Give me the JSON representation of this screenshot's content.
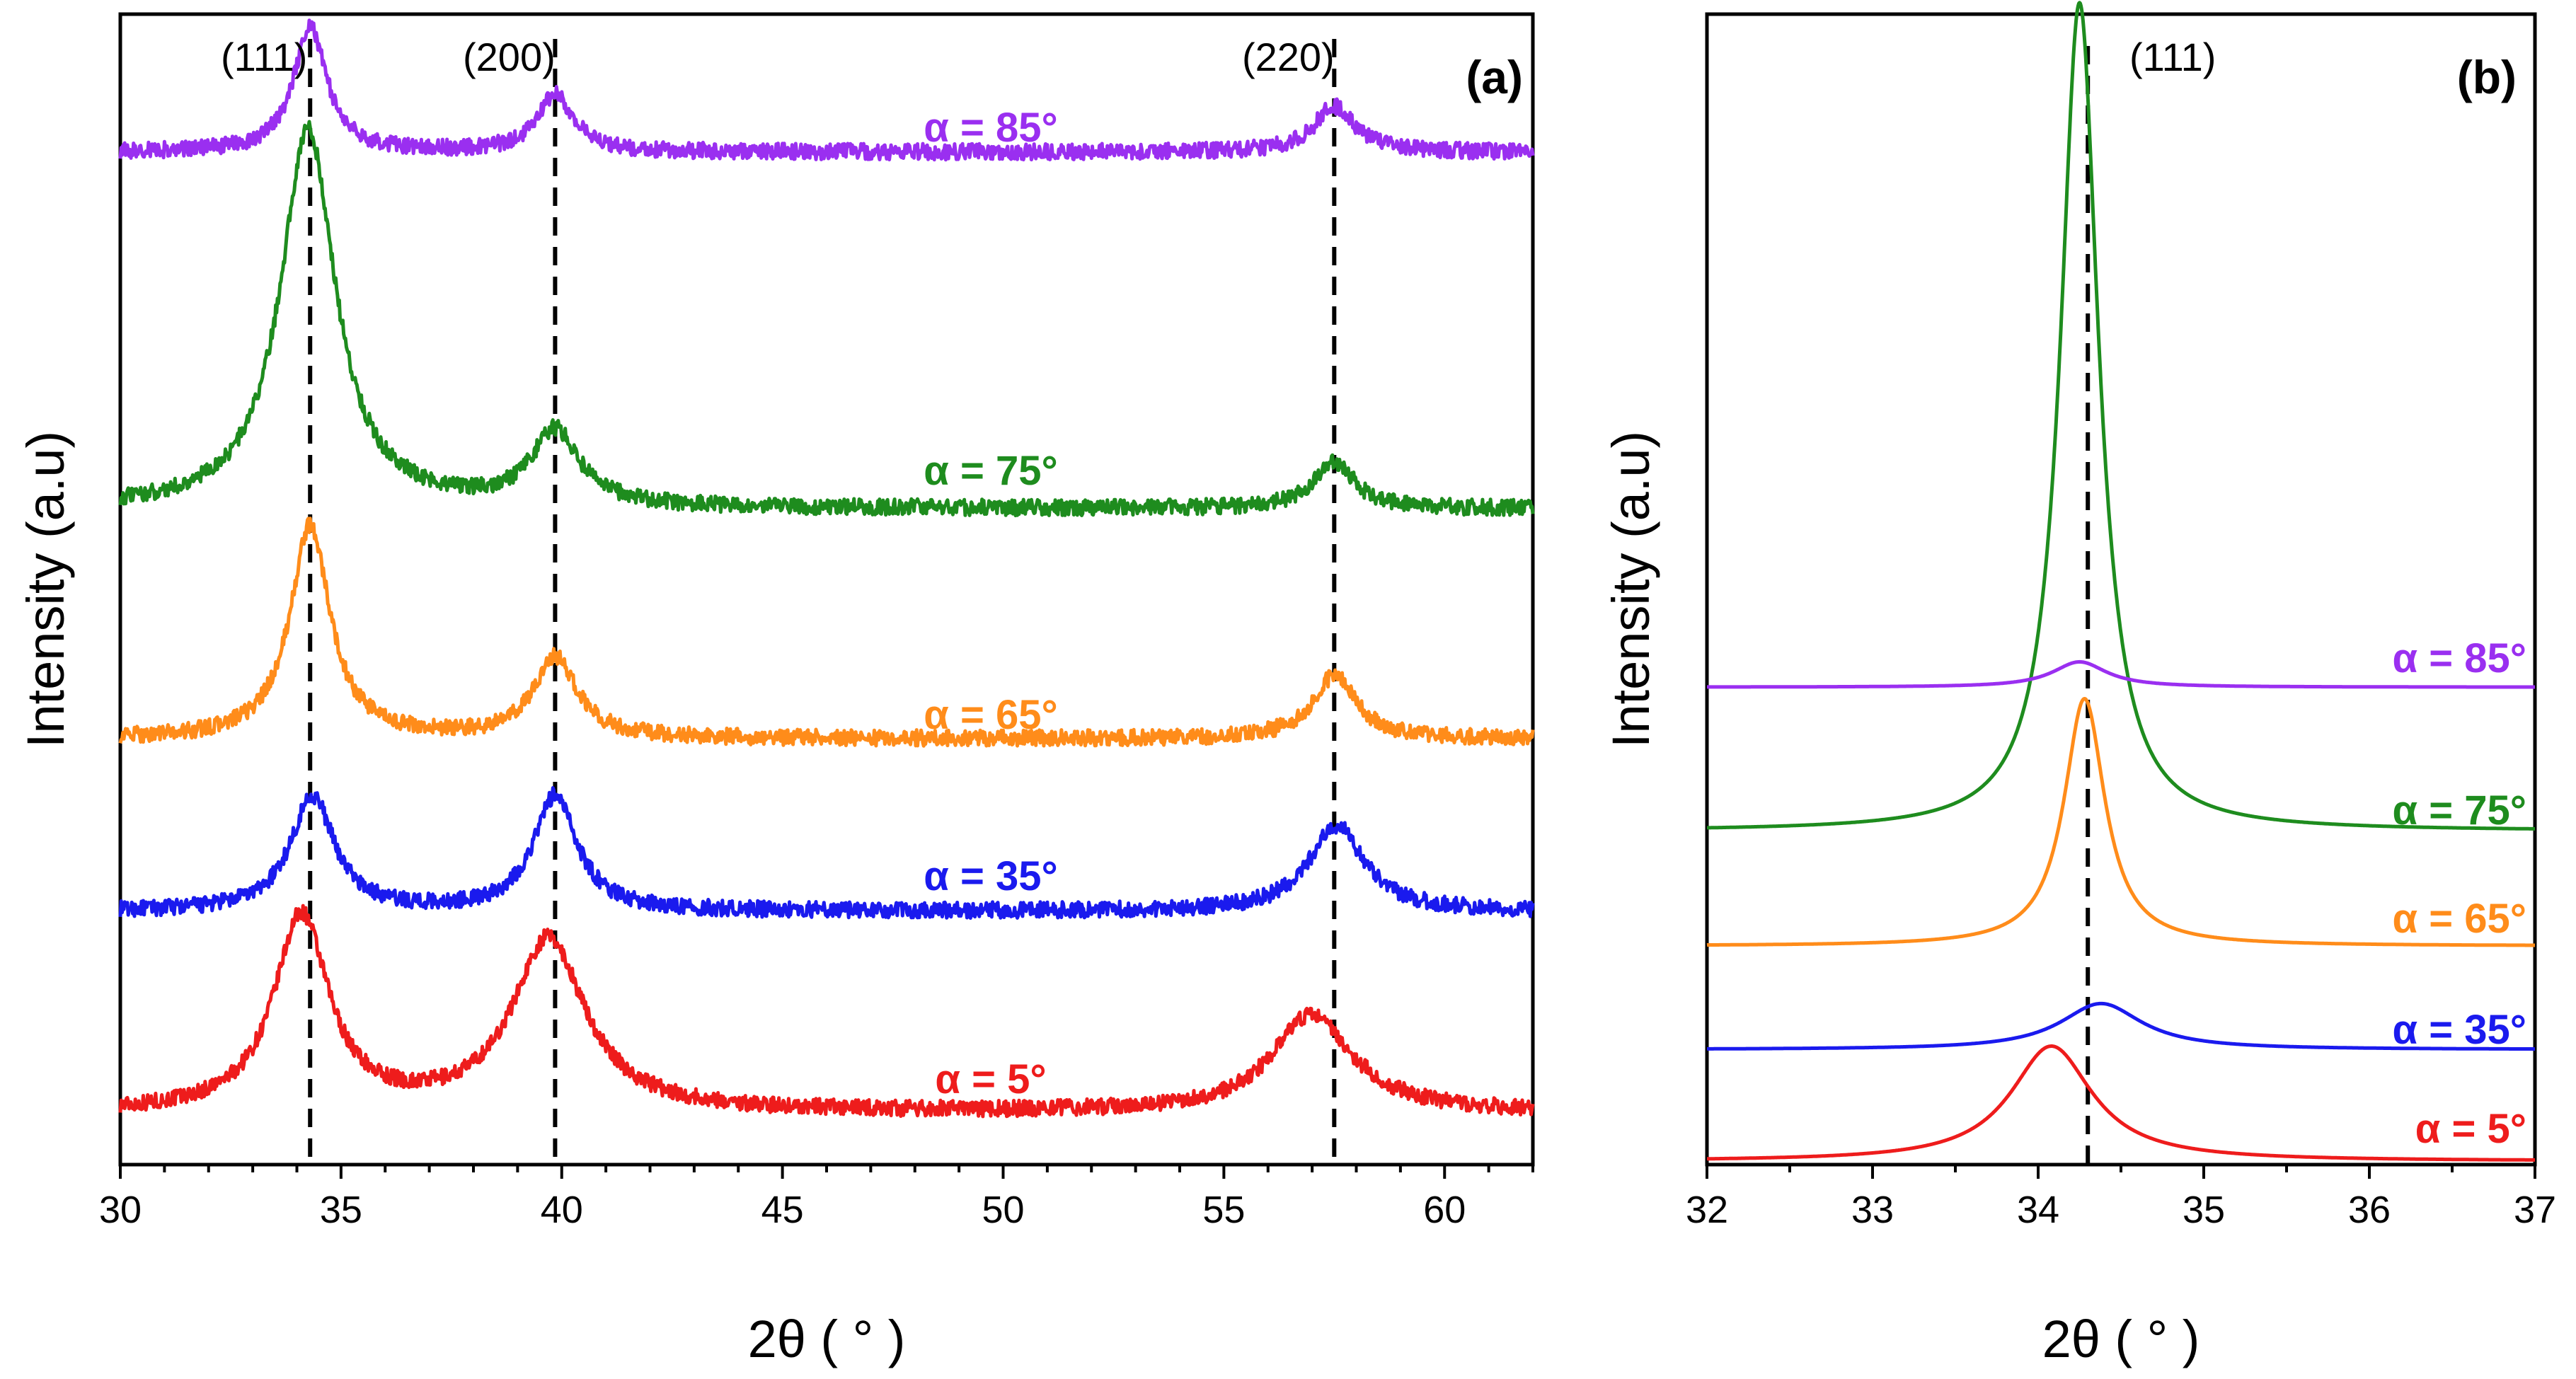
{
  "chart_data": [
    {
      "panel": "(a)",
      "type": "line",
      "xlabel": "2θ ( ° )",
      "ylabel": "Intensity (a.u)",
      "xlim": [
        30,
        62
      ],
      "xticks": [
        30,
        35,
        40,
        45,
        50,
        55,
        60
      ],
      "reference_lines": [
        34.3,
        39.85,
        57.5
      ],
      "peak_labels": [
        {
          "text": "(111)",
          "x": 34.3
        },
        {
          "text": "(200)",
          "x": 39.85
        },
        {
          "text": "(220)",
          "x": 57.5
        }
      ],
      "series": [
        {
          "name": "α = 5°",
          "color": "#ee1c1c",
          "baseline": 0.045,
          "peaks": [
            [
              34.1,
              0.17,
              0.75
            ],
            [
              39.7,
              0.15,
              1.0
            ],
            [
              57.0,
              0.085,
              1.1
            ]
          ],
          "noise": 0.007
        },
        {
          "name": "α = 35°",
          "color": "#1a1aee",
          "baseline": 0.22,
          "peaks": [
            [
              34.35,
              0.1,
              0.6
            ],
            [
              39.85,
              0.1,
              0.6
            ],
            [
              57.55,
              0.075,
              0.75
            ]
          ],
          "noise": 0.007
        },
        {
          "name": "α = 65°",
          "color": "#ff8c1a",
          "baseline": 0.37,
          "peaks": [
            [
              34.3,
              0.185,
              0.55
            ],
            [
              39.85,
              0.07,
              0.6
            ],
            [
              57.5,
              0.055,
              0.6
            ]
          ],
          "noise": 0.007
        },
        {
          "name": "α = 75°",
          "color": "#1e8c1e",
          "baseline": 0.57,
          "peaks": [
            [
              34.25,
              0.33,
              0.75
            ],
            [
              39.85,
              0.065,
              0.65
            ],
            [
              57.5,
              0.04,
              0.55
            ]
          ],
          "noise": 0.007
        },
        {
          "name": "α = 85°",
          "color": "#9a2ff0",
          "baseline": 0.88,
          "peaks": [
            [
              34.3,
              0.11,
              0.45
            ],
            [
              39.85,
              0.05,
              0.5
            ],
            [
              57.5,
              0.04,
              0.55
            ]
          ],
          "noise": 0.007
        }
      ]
    },
    {
      "panel": "(b)",
      "type": "line",
      "xlabel": "2θ ( ° )",
      "ylabel": "Intensity (a.u)",
      "xlim": [
        32,
        37
      ],
      "xticks": [
        32,
        33,
        34,
        35,
        36,
        37
      ],
      "reference_lines": [
        34.3
      ],
      "peak_labels": [
        {
          "text": "(111)",
          "x": 34.3
        }
      ],
      "series": [
        {
          "name": "α = 5°",
          "color": "#ee1c1c",
          "baseline": 0.003,
          "peaks": [
            [
              34.08,
              0.1,
              0.3
            ]
          ]
        },
        {
          "name": "α = 35°",
          "color": "#1a1aee",
          "baseline": 0.1,
          "peaks": [
            [
              34.38,
              0.04,
              0.3
            ]
          ]
        },
        {
          "name": "α = 65°",
          "color": "#ff8c1a",
          "baseline": 0.19,
          "peaks": [
            [
              34.28,
              0.215,
              0.15
            ]
          ]
        },
        {
          "name": "α = 75°",
          "color": "#1e8c1e",
          "baseline": 0.29,
          "peaks": [
            [
              34.25,
              0.72,
              0.14
            ]
          ]
        },
        {
          "name": "α = 85°",
          "color": "#9a2ff0",
          "baseline": 0.415,
          "peaks": [
            [
              34.25,
              0.022,
              0.2
            ]
          ]
        }
      ]
    }
  ]
}
